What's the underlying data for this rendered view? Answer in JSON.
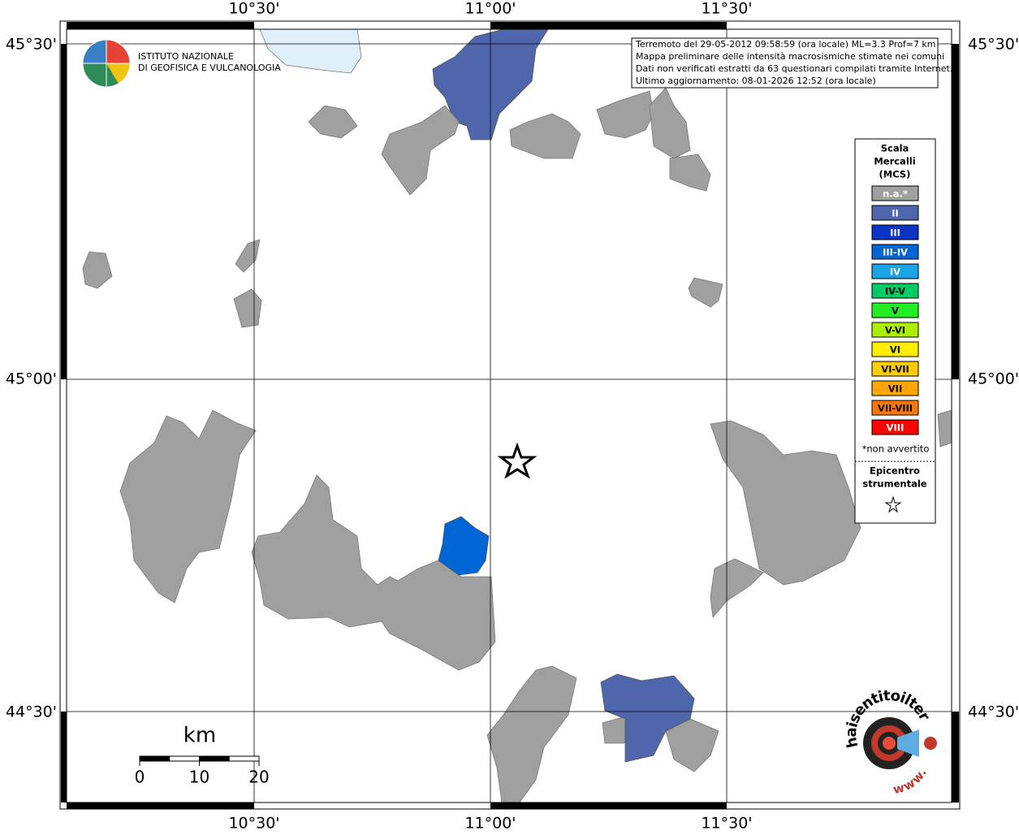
{
  "info": {
    "lines": [
      "Terremoto del 29-05-2012 09:58:59 (ora locale) ML=3.3 Prof=7 km",
      "Mappa preliminare delle intensità macrosismiche stimate nei comuni",
      "Dati non verificati estratti da 63 questionari compilati tramite Internet.",
      "Ultimo aggiornamento: 08-01-2026 12:52 (ora locale)"
    ]
  },
  "logo": {
    "line1": "ISTITUTO NAZIONALE",
    "line2": "DI GEOFISICA E VULCANOLOGIA"
  },
  "map": {
    "lon_labels": [
      "10°30'",
      "11°00'",
      "11°30'"
    ],
    "lat_labels": [
      "45°30'",
      "45°00'",
      "44°30'"
    ]
  },
  "legend": {
    "title": [
      "Scala",
      "Mercalli",
      "(MCS)"
    ],
    "classes": [
      {
        "label": "n.a.*",
        "color": "#a0a0a0",
        "text_color": "#ffffff"
      },
      {
        "label": "II",
        "color": "#4f66ad",
        "text_color": "#ffffff"
      },
      {
        "label": "III",
        "color": "#0a33c4",
        "text_color": "#ffffff"
      },
      {
        "label": "III-IV",
        "color": "#0066d6",
        "text_color": "#ffffff"
      },
      {
        "label": "IV",
        "color": "#1aa3e6",
        "text_color": "#ffffff"
      },
      {
        "label": "IV-V",
        "color": "#00cc66",
        "text_color": "#000000"
      },
      {
        "label": "V",
        "color": "#22ee22",
        "text_color": "#000000"
      },
      {
        "label": "V-VI",
        "color": "#aaee00",
        "text_color": "#000000"
      },
      {
        "label": "VI",
        "color": "#ffee00",
        "text_color": "#000000"
      },
      {
        "label": "VI-VII",
        "color": "#ffcc00",
        "text_color": "#000000"
      },
      {
        "label": "VII",
        "color": "#ffa500",
        "text_color": "#000000"
      },
      {
        "label": "VII-VIII",
        "color": "#ff7700",
        "text_color": "#000000"
      },
      {
        "label": "VIII",
        "color": "#ff0000",
        "text_color": "#ffffff"
      }
    ],
    "note": "*non avvertito",
    "epicenter": [
      "Epicentro",
      "strumentale"
    ]
  },
  "scale_bar": {
    "unit": "km",
    "ticks": [
      0,
      10,
      20
    ]
  },
  "badge": {
    "site": "haisentitoilterremoto.it",
    "www": "www."
  }
}
